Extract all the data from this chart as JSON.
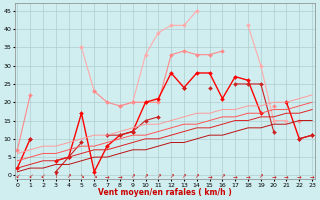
{
  "x": [
    0,
    1,
    2,
    3,
    4,
    5,
    6,
    7,
    8,
    9,
    10,
    11,
    12,
    13,
    14,
    15,
    16,
    17,
    18,
    19,
    20,
    21,
    22,
    23
  ],
  "series": [
    {
      "name": "light_pink_peaked",
      "color": "#ffaaaa",
      "lw": 0.8,
      "marker": "D",
      "markersize": 2.0,
      "y": [
        7,
        null,
        null,
        null,
        null,
        35,
        23,
        null,
        19,
        20,
        33,
        39,
        41,
        41,
        41,
        null,
        null,
        null,
        41,
        30,
        15,
        15,
        null,
        null
      ]
    },
    {
      "name": "light_pink_full",
      "color": "#ffaaaa",
      "lw": 0.8,
      "marker": "D",
      "markersize": 2.0,
      "y": [
        7,
        null,
        null,
        null,
        null,
        35,
        23,
        null,
        19,
        20,
        33,
        39,
        41,
        41,
        41,
        null,
        null,
        null,
        41,
        30,
        15,
        15,
        null,
        null
      ]
    },
    {
      "name": "medium_pink_line",
      "color": "#ff8888",
      "lw": 0.8,
      "marker": "D",
      "markersize": 2.0,
      "y": [
        7,
        22,
        null,
        null,
        5,
        null,
        23,
        20,
        19,
        20,
        20,
        20,
        33,
        34,
        33,
        33,
        34,
        null,
        null,
        null,
        19,
        null,
        15,
        null
      ]
    },
    {
      "name": "red_jagged_main",
      "color": "#ff0000",
      "lw": 1.0,
      "marker": "D",
      "markersize": 2.0,
      "y": [
        2,
        10,
        null,
        4,
        5,
        17,
        null,
        8,
        11,
        12,
        20,
        21,
        28,
        24,
        28,
        28,
        21,
        27,
        26,
        17,
        null,
        20,
        10,
        11
      ]
    },
    {
      "name": "red_medium_line",
      "color": "#cc2222",
      "lw": 0.8,
      "marker": "D",
      "markersize": 2.0,
      "y": [
        null,
        10,
        null,
        1,
        5,
        9,
        null,
        11,
        11,
        12,
        15,
        16,
        null,
        24,
        null,
        24,
        null,
        25,
        25,
        25,
        12,
        null,
        10,
        11
      ]
    },
    {
      "name": "diagonal_line1",
      "color": "#dd3333",
      "lw": 0.8,
      "marker": null,
      "markersize": 0,
      "y": [
        1,
        2,
        2,
        3,
        3,
        4,
        5,
        5,
        6,
        7,
        7,
        8,
        9,
        9,
        10,
        11,
        11,
        12,
        13,
        13,
        14,
        14,
        15,
        15
      ]
    },
    {
      "name": "diagonal_line2",
      "color": "#ff4444",
      "lw": 0.8,
      "marker": null,
      "markersize": 0,
      "y": [
        2,
        3,
        4,
        4,
        5,
        6,
        7,
        7,
        8,
        9,
        10,
        10,
        11,
        12,
        13,
        13,
        14,
        15,
        15,
        16,
        16,
        17,
        17,
        18
      ]
    },
    {
      "name": "diagonal_line3",
      "color": "#ff6666",
      "lw": 0.8,
      "marker": null,
      "markersize": 0,
      "y": [
        4,
        5,
        6,
        6,
        7,
        8,
        8,
        9,
        10,
        11,
        11,
        12,
        13,
        14,
        14,
        15,
        16,
        16,
        17,
        17,
        18,
        18,
        19,
        20
      ]
    },
    {
      "name": "diagonal_line4",
      "color": "#ff9999",
      "lw": 0.8,
      "marker": null,
      "markersize": 0,
      "y": [
        6,
        7,
        8,
        8,
        9,
        10,
        11,
        11,
        12,
        13,
        14,
        14,
        15,
        16,
        17,
        17,
        18,
        18,
        19,
        19,
        20,
        20,
        21,
        22
      ]
    }
  ],
  "xlim": [
    -0.2,
    23.2
  ],
  "ylim": [
    -1,
    47
  ],
  "yticks": [
    0,
    5,
    10,
    15,
    20,
    25,
    30,
    35,
    40,
    45
  ],
  "xticks": [
    0,
    1,
    2,
    3,
    4,
    5,
    6,
    7,
    8,
    9,
    10,
    11,
    12,
    13,
    14,
    15,
    16,
    17,
    18,
    19,
    20,
    21,
    22,
    23
  ],
  "xlabel": "Vent moyen/en rafales ( km/h )",
  "background_color": "#d0eef0",
  "grid_color": "#b0cdd0",
  "label_color": "#cc0000"
}
